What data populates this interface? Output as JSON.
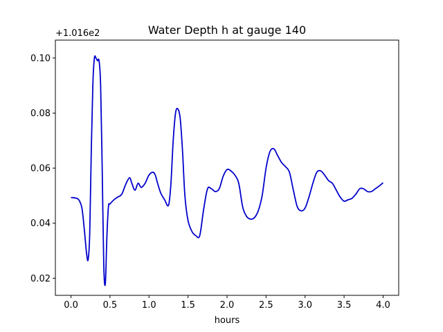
{
  "chart_data": {
    "type": "line",
    "title": "Water Depth h at gauge 140",
    "xlabel": "hours",
    "ylabel": "",
    "offset_label": "+1.016e2",
    "xlim": [
      -0.2,
      4.2
    ],
    "ylim": [
      0.0138,
      0.1065
    ],
    "x_ticks": [
      0.0,
      0.5,
      1.0,
      1.5,
      2.0,
      2.5,
      3.0,
      3.5,
      4.0
    ],
    "x_tick_labels": [
      "0.0",
      "0.5",
      "1.0",
      "1.5",
      "2.0",
      "2.5",
      "3.0",
      "3.5",
      "4.0"
    ],
    "y_ticks": [
      0.02,
      0.04,
      0.06,
      0.08,
      0.1
    ],
    "y_tick_labels": [
      "0.02",
      "0.04",
      "0.06",
      "0.08",
      "0.10"
    ],
    "grid": false,
    "series": [
      {
        "name": "",
        "color": "#0000cc",
        "x": [
          0.0,
          0.05,
          0.1,
          0.14,
          0.17,
          0.2,
          0.22,
          0.24,
          0.26,
          0.28,
          0.3,
          0.32,
          0.34,
          0.36,
          0.38,
          0.4,
          0.42,
          0.44,
          0.46,
          0.48,
          0.5,
          0.55,
          0.6,
          0.65,
          0.7,
          0.75,
          0.78,
          0.82,
          0.86,
          0.9,
          0.95,
          1.0,
          1.05,
          1.08,
          1.11,
          1.15,
          1.2,
          1.25,
          1.28,
          1.31,
          1.34,
          1.37,
          1.4,
          1.43,
          1.46,
          1.5,
          1.55,
          1.6,
          1.65,
          1.7,
          1.75,
          1.8,
          1.85,
          1.9,
          1.95,
          2.0,
          2.05,
          2.1,
          2.15,
          2.2,
          2.25,
          2.3,
          2.35,
          2.4,
          2.45,
          2.5,
          2.55,
          2.6,
          2.65,
          2.7,
          2.75,
          2.8,
          2.85,
          2.9,
          2.95,
          3.0,
          3.05,
          3.1,
          3.15,
          3.2,
          3.25,
          3.3,
          3.35,
          3.4,
          3.45,
          3.5,
          3.55,
          3.6,
          3.65,
          3.7,
          3.75,
          3.8,
          3.85,
          3.9,
          3.95,
          4.0
        ],
        "y": [
          0.0493,
          0.0492,
          0.0485,
          0.0455,
          0.038,
          0.029,
          0.0268,
          0.036,
          0.066,
          0.09,
          0.1,
          0.1,
          0.099,
          0.099,
          0.09,
          0.06,
          0.025,
          0.018,
          0.035,
          0.046,
          0.047,
          0.0485,
          0.0495,
          0.0505,
          0.054,
          0.0565,
          0.0545,
          0.052,
          0.0545,
          0.053,
          0.0545,
          0.0575,
          0.0585,
          0.0575,
          0.0545,
          0.051,
          0.0485,
          0.0465,
          0.054,
          0.07,
          0.08,
          0.0815,
          0.078,
          0.066,
          0.05,
          0.041,
          0.037,
          0.0355,
          0.0355,
          0.045,
          0.0525,
          0.0525,
          0.0515,
          0.0525,
          0.057,
          0.0595,
          0.059,
          0.0575,
          0.0545,
          0.046,
          0.0425,
          0.0415,
          0.042,
          0.0445,
          0.05,
          0.06,
          0.066,
          0.067,
          0.0645,
          0.062,
          0.0605,
          0.0585,
          0.052,
          0.046,
          0.0445,
          0.0455,
          0.0495,
          0.0545,
          0.0585,
          0.059,
          0.0575,
          0.0555,
          0.0545,
          0.052,
          0.0495,
          0.048,
          0.0485,
          0.049,
          0.0505,
          0.0525,
          0.0525,
          0.0515,
          0.0515,
          0.0525,
          0.0535,
          0.0547
        ]
      }
    ]
  }
}
